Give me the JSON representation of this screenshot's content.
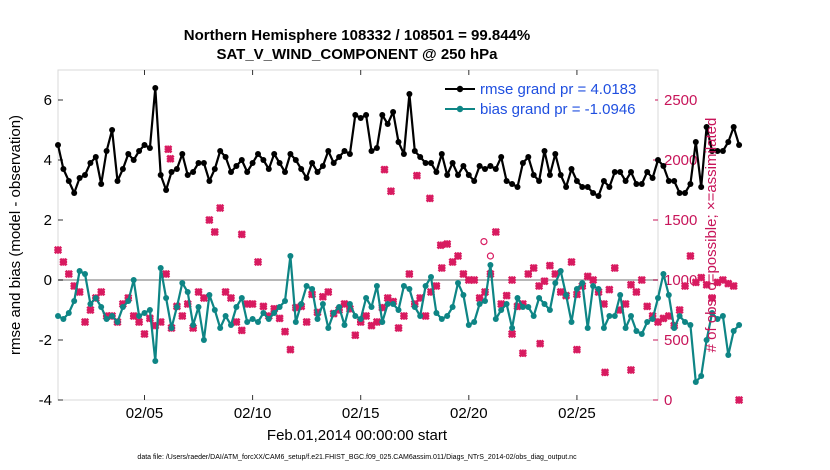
{
  "chart_data": {
    "type": "line",
    "title": "Northern Hemisphere 108332 / 108501 = 99.844%",
    "subtitle": "SAT_V_WIND_COMPONENT @ 250 hPa",
    "xlabel": "Feb.01,2014 00:00:00 start",
    "ylabel": "rmse and bias (model - observation)",
    "ylabel_right": "# of obs: o=possible; ×=assimilated",
    "footer": "data file: /Users/raeder/DAI/ATM_forcXX/CAM6_setup/f.e21.FHIST_BGC.f09_025.CAM6assim.011/Diags_NTrS_2014-02/obs_diag_output.nc",
    "x_ticks": [
      "02/05",
      "02/10",
      "02/15",
      "02/20",
      "02/25"
    ],
    "x_tick_days": [
      5,
      10,
      15,
      20,
      25
    ],
    "xlim": [
      1,
      28.75
    ],
    "ylim": [
      -4,
      7
    ],
    "y_ticks": [
      "-4",
      "-2",
      "0",
      "2",
      "4",
      "6"
    ],
    "y_tick_values": [
      -4,
      -2,
      0,
      2,
      4,
      6
    ],
    "ylim_right": [
      0,
      2750
    ],
    "y_ticks_right": [
      "0",
      "500",
      "1000",
      "1500",
      "2000",
      "2500"
    ],
    "y_tick_values_right": [
      0,
      500,
      1000,
      1500,
      2000,
      2500
    ],
    "zero_line": 0,
    "legend_position": "top-right",
    "series": [
      {
        "name": "rmse grand pr = 4.0183",
        "color": "#000000",
        "axis": "left",
        "x_start": 1,
        "x_step": 0.25,
        "values": [
          4.5,
          3.7,
          3.3,
          2.9,
          3.4,
          3.5,
          3.9,
          4.1,
          3.2,
          4.3,
          5.0,
          3.3,
          3.7,
          4.2,
          4.0,
          4.3,
          4.5,
          4.4,
          6.4,
          3.5,
          3.0,
          3.6,
          3.7,
          4.2,
          3.5,
          3.6,
          3.9,
          3.9,
          3.3,
          3.7,
          4.3,
          4.1,
          3.6,
          3.8,
          4.0,
          3.6,
          3.9,
          4.2,
          4.0,
          3.7,
          4.2,
          3.9,
          3.6,
          4.2,
          4.0,
          3.7,
          3.4,
          3.9,
          3.6,
          3.8,
          4.3,
          3.9,
          4.1,
          4.3,
          4.2,
          5.5,
          5.4,
          5.5,
          4.3,
          4.4,
          5.5,
          5.2,
          5.6,
          4.6,
          4.2,
          6.2,
          4.3,
          4.1,
          3.9,
          3.9,
          3.6,
          4.2,
          3.5,
          3.9,
          3.5,
          3.8,
          3.5,
          3.3,
          3.8,
          3.7,
          3.8,
          3.7,
          4.1,
          3.3,
          3.2,
          3.1,
          3.9,
          4.1,
          3.5,
          3.3,
          4.3,
          3.5,
          4.2,
          3.5,
          3.1,
          3.7,
          3.3,
          3.1,
          3.1,
          2.9,
          2.8,
          3.3,
          3.1,
          3.6,
          3.6,
          3.3,
          3.6,
          3.2,
          3.2,
          3.6,
          3.4,
          4.0,
          3.8,
          3.3,
          3.3,
          2.9,
          2.9,
          3.2,
          4.6,
          3.1,
          5.1,
          4.3,
          4.3,
          4.3,
          4.6,
          5.1,
          4.5
        ],
        "marker": "dot"
      },
      {
        "name": "bias grand pr = -1.0946",
        "color": "#0e8585",
        "axis": "left",
        "x_start": 1,
        "x_step": 0.25,
        "values": [
          -1.2,
          -1.3,
          -1.1,
          -0.7,
          0.3,
          0.2,
          -0.8,
          -0.6,
          -0.9,
          -1.3,
          -1.2,
          -1.4,
          -0.9,
          -0.7,
          0.0,
          -1.2,
          -1.1,
          -1.0,
          -2.7,
          0.4,
          -0.6,
          -1.6,
          -0.9,
          -0.1,
          -0.4,
          -1.5,
          -0.9,
          -2.0,
          -0.5,
          -1.0,
          -1.6,
          -1.2,
          -1.5,
          -0.9,
          -0.6,
          -1.4,
          -1.3,
          -1.4,
          -1.1,
          -1.3,
          -1.1,
          -0.9,
          -0.7,
          0.8,
          -1.4,
          -0.8,
          -0.2,
          -0.3,
          -1.3,
          -0.8,
          -1.6,
          -1.1,
          -0.9,
          -1.5,
          -0.8,
          -1.2,
          -1.3,
          -0.6,
          -0.9,
          -0.2,
          -1.4,
          -0.8,
          -0.8,
          -1.0,
          -0.2,
          -0.3,
          -0.9,
          -1.2,
          -0.2,
          0.1,
          -1.1,
          -1.3,
          -1.2,
          -0.9,
          -0.1,
          -0.5,
          -1.5,
          -1.4,
          -0.8,
          -0.7,
          0.5,
          -1.3,
          -1.0,
          -0.8,
          -1.6,
          -0.6,
          -0.9,
          -0.9,
          -1.2,
          -0.6,
          -0.8,
          -1.0,
          -0.1,
          0.3,
          -0.5,
          -1.4,
          -0.3,
          -0.1,
          -1.6,
          -0.2,
          -0.3,
          -1.6,
          -1.2,
          -1.2,
          -0.5,
          -1.6,
          -1.2,
          -1.7,
          -1.8,
          -1.4,
          -1.3,
          -0.6,
          0.2,
          -0.5,
          -1.6,
          -1.2,
          -1.4,
          -1.5,
          -3.4,
          -3.2,
          -2.0,
          -1.1,
          -1.3,
          -1.2,
          -2.5,
          -1.7,
          -1.5
        ],
        "marker": "dot"
      },
      {
        "name": "assimilated",
        "color": "#d81b60",
        "axis": "right",
        "marker": "x",
        "x_start": 1,
        "x_step": 0.25,
        "values": [
          1250,
          1150,
          1050,
          950,
          900,
          650,
          750,
          850,
          900,
          700,
          700,
          650,
          800,
          850,
          700,
          650,
          550,
          680,
          620,
          650,
          1050,
          600,
          780,
          700,
          800,
          600,
          900,
          850,
          1500,
          1400,
          1600,
          900,
          850,
          650,
          580,
          800,
          800,
          1150,
          780,
          700,
          760,
          680,
          570,
          420,
          770,
          780,
          650,
          880,
          730,
          860,
          900,
          720,
          750,
          800,
          760,
          540,
          650,
          700,
          620,
          650,
          770,
          850,
          820,
          600,
          700,
          1050,
          800,
          850,
          700,
          900,
          950,
          1100,
          1300,
          1150,
          1200,
          1050,
          1000,
          1000,
          850,
          900,
          1050,
          1400,
          800,
          870,
          1000,
          780,
          800,
          1050,
          1100,
          950,
          990,
          1120,
          1050,
          900,
          870,
          1150,
          880,
          950,
          1030,
          1000,
          900,
          800,
          920,
          1100,
          750,
          800,
          960,
          900,
          1000,
          780,
          700,
          650,
          680,
          700,
          620,
          750,
          950,
          1200,
          980,
          1020,
          960,
          850,
          980,
          1000,
          970,
          950,
          0
        ],
        "extra_points": [
          [
            6.1,
            2090
          ],
          [
            6.2,
            2010
          ],
          [
            17.6,
            1870
          ],
          [
            18.2,
            1680
          ],
          [
            16.1,
            1920
          ],
          [
            16.4,
            1740
          ],
          [
            9.5,
            1380
          ],
          [
            18.7,
            1290
          ],
          [
            23.3,
            470
          ],
          [
            25.0,
            420
          ],
          [
            26.3,
            230
          ],
          [
            27.5,
            250
          ],
          [
            22.0,
            550
          ],
          [
            22.5,
            390
          ]
        ]
      }
    ],
    "possible_markers": [
      [
        20.7,
        1320
      ],
      [
        21.0,
        1200
      ]
    ]
  }
}
